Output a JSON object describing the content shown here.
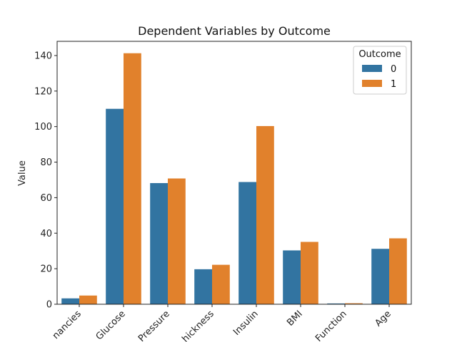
{
  "chart_data": {
    "type": "bar",
    "title": "Dependent Variables by Outcome",
    "xlabel": "",
    "ylabel": "Value",
    "ylim": [
      0,
      148
    ],
    "yticks": [
      0,
      20,
      40,
      60,
      80,
      100,
      120,
      140
    ],
    "categories": [
      "Pregnancies",
      "Glucose",
      "BloodPressure",
      "SkinThickness",
      "Insulin",
      "BMI",
      "DiabetesPedigreeFunction",
      "Age"
    ],
    "category_labels_visible": [
      "nancies",
      "Glucose",
      "Pressure",
      "hickness",
      "Insulin",
      "BMI",
      "Function",
      "Age"
    ],
    "legend": {
      "title": "Outcome",
      "position": "top-right"
    },
    "series": [
      {
        "name": "0",
        "color": "#3274a1",
        "values": [
          3.3,
          110.0,
          68.2,
          19.7,
          68.8,
          30.3,
          0.43,
          31.2
        ]
      },
      {
        "name": "1",
        "color": "#e1812c",
        "values": [
          4.9,
          141.3,
          70.8,
          22.2,
          100.3,
          35.1,
          0.55,
          37.1
        ]
      }
    ]
  }
}
